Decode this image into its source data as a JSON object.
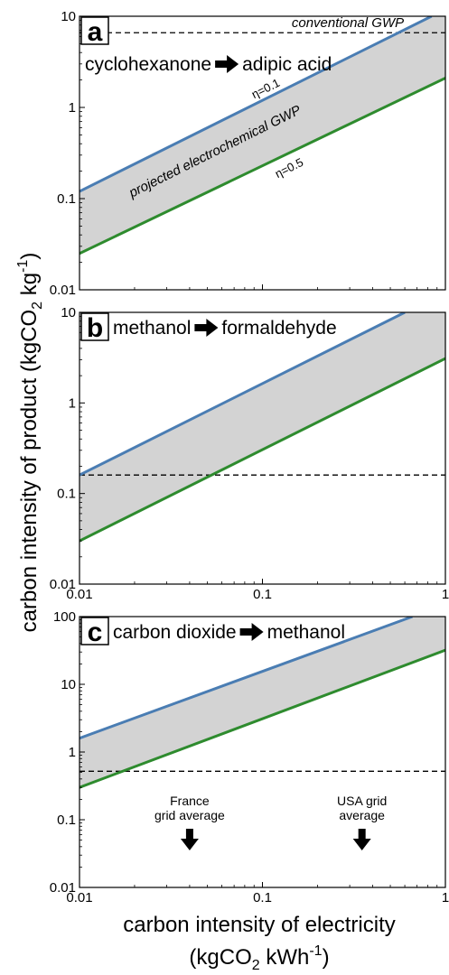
{
  "figure": {
    "ylabel": "carbon intensity of product (kgCO",
    "ylabel_sub": "2",
    "ylabel_mid": " kg",
    "ylabel_sup": "-1",
    "ylabel_end": ")",
    "xlabel_line1": "carbon intensity of electricity",
    "xlabel_line2_pre": "(kgCO",
    "xlabel_line2_sub": "2",
    "xlabel_line2_mid": " kWh",
    "xlabel_line2_sup": "-1",
    "xlabel_line2_end": ")"
  },
  "colors": {
    "eta_low": "#4a7db3",
    "eta_high": "#2e8b2e",
    "band": "#d3d3d3",
    "conventional": "#000000"
  },
  "chart_data": [
    {
      "type": "line",
      "panel": "a",
      "title_from": "cyclohexanone",
      "title_to": "adipic acid",
      "x_scale": "log",
      "y_scale": "log",
      "xlim": [
        0.01,
        1
      ],
      "ylim": [
        0.01,
        10
      ],
      "x_ticks": [
        0.01,
        0.1,
        1
      ],
      "x_tick_labels": [],
      "y_ticks": [
        0.01,
        0.1,
        1,
        10
      ],
      "y_tick_labels": [
        "0.01",
        "0.1",
        "1",
        "10"
      ],
      "series": [
        {
          "name": "η=0.1",
          "x": [
            0.01,
            0.84
          ],
          "y": [
            0.12,
            10
          ]
        },
        {
          "name": "η=0.5",
          "x": [
            0.01,
            1
          ],
          "y": [
            0.025,
            2.1
          ]
        }
      ],
      "conventional_gwp": 6.6,
      "labels": {
        "conventional": "conventional GWP",
        "projected": "projected electrochemical GWP",
        "eta_low": "η=0.1",
        "eta_high": "η=0.5"
      }
    },
    {
      "type": "line",
      "panel": "b",
      "title_from": "methanol",
      "title_to": "formaldehyde",
      "x_scale": "log",
      "y_scale": "log",
      "xlim": [
        0.01,
        1
      ],
      "ylim": [
        0.01,
        10
      ],
      "x_ticks": [
        0.01,
        0.1,
        1
      ],
      "x_tick_labels": [
        "0.01",
        "0.1",
        "1"
      ],
      "y_ticks": [
        0.01,
        0.1,
        1,
        10
      ],
      "y_tick_labels": [
        "0.01",
        "0.1",
        "1",
        "10"
      ],
      "series": [
        {
          "x": [
            0.01,
            0.6
          ],
          "y": [
            0.16,
            10
          ]
        },
        {
          "x": [
            0.01,
            1
          ],
          "y": [
            0.03,
            3.1
          ]
        }
      ],
      "conventional_gwp": 0.16
    },
    {
      "type": "line",
      "panel": "c",
      "title_from": "carbon dioxide",
      "title_to": "methanol",
      "x_scale": "log",
      "y_scale": "log",
      "xlim": [
        0.01,
        1
      ],
      "ylim": [
        0.01,
        100
      ],
      "x_ticks": [
        0.01,
        0.1,
        1
      ],
      "x_tick_labels": [
        "0.01",
        "0.1",
        "1"
      ],
      "y_ticks": [
        0.01,
        0.1,
        1,
        10,
        100
      ],
      "y_tick_labels": [
        "0.01",
        "0.1",
        "1",
        "10",
        "100"
      ],
      "series": [
        {
          "x": [
            0.01,
            0.66
          ],
          "y": [
            1.6,
            100
          ]
        },
        {
          "x": [
            0.01,
            1
          ],
          "y": [
            0.3,
            32
          ]
        }
      ],
      "conventional_gwp": 0.52,
      "markers": [
        {
          "x": 0.04,
          "line1": "France",
          "line2": "grid average"
        },
        {
          "x": 0.35,
          "line1": "USA grid",
          "line2": "average"
        }
      ]
    }
  ]
}
